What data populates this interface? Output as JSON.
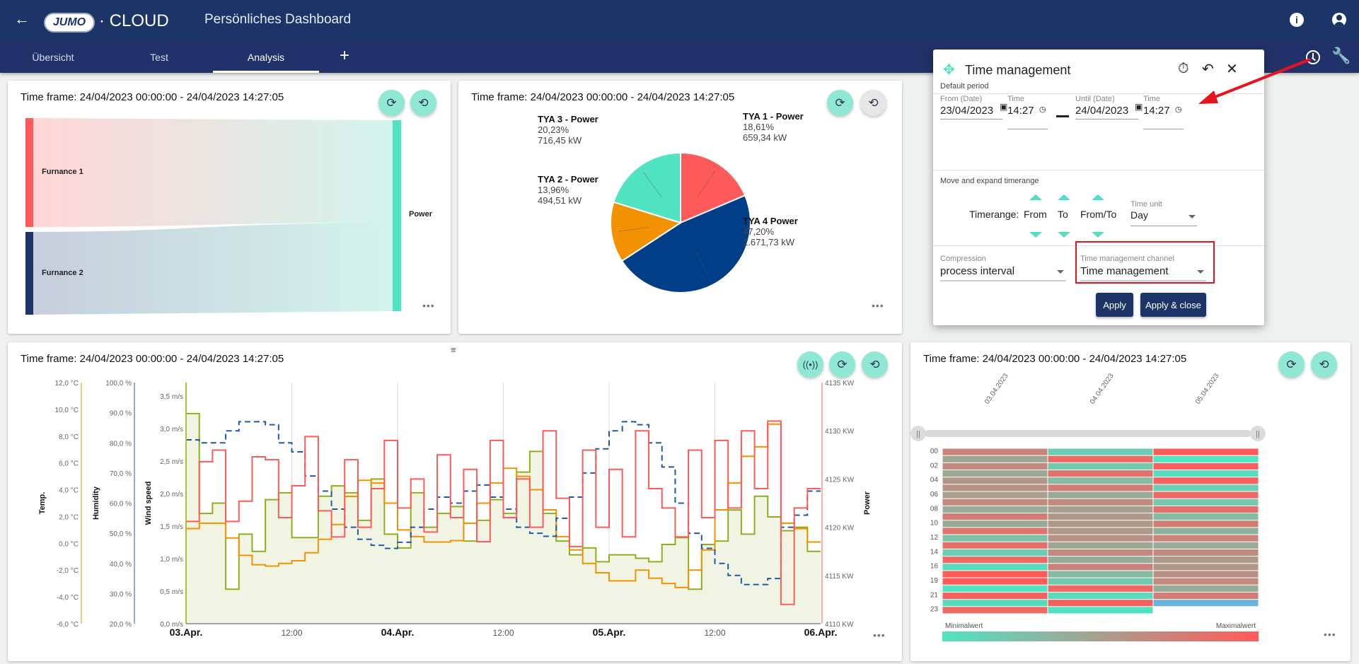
{
  "header": {
    "logo_text": "JUMO",
    "logo_suffix": "· CLOUD",
    "title": "Persönliches Dashboard"
  },
  "tabs": [
    {
      "label": "Übersicht"
    },
    {
      "label": "Test"
    },
    {
      "label": "Analysis",
      "active": true
    }
  ],
  "add_tab_label": "+",
  "colors": {
    "brand": "#1d3468",
    "accent": "#4fdfc2",
    "red": "#ff5a5a",
    "navy": "#003f87",
    "orange": "#f39200",
    "green": "#8fae1b"
  },
  "time_frame": "Time frame: 24/04/2023 00:00:00 - 24/04/2023 14:27:05",
  "sankey": {
    "sources": [
      "Furnance 1",
      "Furnance 2"
    ],
    "target": "Power"
  },
  "popup": {
    "title": "Time management",
    "default_period": "Default period",
    "from_date_label": "From (Date)",
    "from_date": "23/04/2023",
    "from_time_label": "Time",
    "from_time": "14:27",
    "until_date_label": "Until (Date)",
    "until_date": "24/04/2023",
    "until_time_label": "Time",
    "until_time": "14:27",
    "move_expand": "Move and expand timerange",
    "timerange_label": "Timerange:",
    "from": "From",
    "to": "To",
    "from_to": "From/To",
    "time_unit_label": "Time unit",
    "time_unit": "Day",
    "compression_label": "Compression",
    "compression": "process interval",
    "channel_label": "Time management channel",
    "channel": "Time management",
    "apply": "Apply",
    "apply_close": "Apply & close"
  },
  "chart_data": [
    {
      "type": "pie",
      "slices": [
        {
          "name": "TYA 1 - Power",
          "percent": 18.61,
          "percent_label": "18,61%",
          "value_label": "659,34 kW",
          "color": "#ff5a5a"
        },
        {
          "name": "TYA 4 Power",
          "percent": 47.2,
          "percent_label": "47,20%",
          "value_label": "1.671,73 kW",
          "color": "#003f87"
        },
        {
          "name": "TYA 2 - Power",
          "percent": 13.96,
          "percent_label": "13,96%",
          "value_label": "494,51 kW",
          "color": "#f39200"
        },
        {
          "name": "TYA 3 - Power",
          "percent": 20.23,
          "percent_label": "20,23%",
          "value_label": "716,45 kW",
          "color": "#50e3c2"
        }
      ]
    },
    {
      "type": "line",
      "step": true,
      "x_start": "03.Apr. 00:00",
      "x_end": "06.Apr. 00:00",
      "step_hours": 1.5,
      "x_ticks": [
        "03.Apr.",
        "12:00",
        "04.Apr.",
        "12:00",
        "05.Apr.",
        "12:00",
        "06.Apr."
      ],
      "axes": [
        {
          "id": "temp",
          "label": "Temp.",
          "range": [
            -6,
            12
          ],
          "ticks": [
            "12,0 °C",
            "10,0 °C",
            "8,0 °C",
            "6,0 °C",
            "4,0 °C",
            "2,0 °C",
            "0,0 °C",
            "-2,0 °C",
            "-4,0 °C",
            "-6,0 °C"
          ],
          "color": "#f39200"
        },
        {
          "id": "hum",
          "label": "Humidity",
          "range": [
            20,
            100
          ],
          "ticks": [
            "100,0 %",
            "90,0 %",
            "80,0 %",
            "70,0 %",
            "60,0 %",
            "50,0 %",
            "40,0 %",
            "30,0 %",
            "20,0 %"
          ],
          "color": "#1f5aa6"
        },
        {
          "id": "wind",
          "label": "Wind speed",
          "range": [
            0,
            3.5
          ],
          "ticks": [
            "3,5 m/s",
            "3,0 m/s",
            "2,5 m/s",
            "2,0 m/s",
            "1,5 m/s",
            "1,0 m/s",
            "0,5 m/s",
            "0,0 m/s"
          ],
          "color": "#8fae1b"
        },
        {
          "id": "power",
          "label": "Power",
          "range": [
            4110,
            4135
          ],
          "ticks": [
            "4135 KW",
            "4130 KW",
            "4125 KW",
            "4120 KW",
            "4115 KW",
            "4110 KW"
          ],
          "color": "#ff5a5a"
        }
      ],
      "series": [
        {
          "axis": "wind",
          "color": "#8fae1b",
          "fill": true,
          "values": [
            3.05,
            1.6,
            1.75,
            0.5,
            1.3,
            1.05,
            1.8,
            1.9,
            1.25,
            1.25,
            1.85,
            2.0,
            1.9,
            1.5,
            2.1,
            1.3,
            1.1,
            1.9,
            1.4,
            1.6,
            1.7,
            1.2,
            1.5,
            1.8,
            1.6,
            2.2,
            2.5,
            1.6,
            1.2,
            1.0,
            1.1,
            0.9,
            1.0,
            1.0,
            0.95,
            0.9,
            1.15,
            1.25,
            0.5,
            1.15,
            1.2,
            1.65,
            1.3,
            1.85,
            1.55,
            1.35,
            1.4,
            1.05
          ]
        },
        {
          "axis": "temp",
          "color": "#f39200",
          "values": [
            1.1,
            1.5,
            1.5,
            0.4,
            -0.9,
            -1.6,
            -1.7,
            -1.5,
            -1.3,
            -0.7,
            0.3,
            1.4,
            3.5,
            4.7,
            4.5,
            3.0,
            1.0,
            0.5,
            0.1,
            0.1,
            0.2,
            1.5,
            3.0,
            4.5,
            5.6,
            5.0,
            4.0,
            2.5,
            0.5,
            -0.5,
            -1.5,
            -2.2,
            -2.8,
            -2.8,
            -2.0,
            -2.6,
            -3.0,
            -3.3,
            -2.0,
            -0.5,
            2.5,
            4.5,
            6.5,
            7.2,
            8.9,
            1.5,
            1.1,
            0.1
          ]
        },
        {
          "axis": "hum",
          "color": "#1f5aa6",
          "dashed": true,
          "values": [
            81,
            80,
            80,
            84,
            87,
            87,
            86,
            80,
            77,
            69,
            64,
            58,
            52,
            48,
            46,
            45,
            47,
            52,
            58,
            62,
            60,
            64,
            66,
            62,
            58,
            52,
            50,
            49,
            55,
            62,
            70,
            78,
            84,
            87,
            86,
            80,
            72,
            60,
            50,
            45,
            40,
            36,
            33,
            33,
            35,
            52,
            56,
            64
          ]
        },
        {
          "axis": "power",
          "color": "#ff5a5a",
          "values": [
            4120.6,
            4126.8,
            4128,
            4120.6,
            4122.7,
            4127.3,
            4127,
            4121,
            4124.3,
            4129.4,
            4121.7,
            4119,
            4127,
            4120,
            4124,
            4129,
            4122,
            4125,
            4119.5,
            4127.5,
            4121,
            4126,
            4118.5,
            4129,
            4121,
            4125,
            4120,
            4130,
            4123,
            4118,
            4128,
            4120,
            4126,
            4119,
            4130,
            4124,
            4122,
            4119,
            4128,
            4121,
            4129,
            4122,
            4130,
            4124,
            4131,
            4112,
            4122,
            4124
          ]
        }
      ]
    },
    {
      "type": "heatmap",
      "columns": [
        "03.04.2023",
        "04.04.2023",
        "05.04.2023"
      ],
      "row_labels": [
        "00",
        "02",
        "04",
        "06",
        "08",
        "10",
        "12",
        "14",
        "16",
        "19",
        "21",
        "23"
      ],
      "min_label": "Minimalwert",
      "max_label": "Maximalwert",
      "color_min": "#50e3c2",
      "color_max": "#ff5a5a",
      "no_data_color": "#6ab4dc",
      "values": [
        [
          0.7,
          0.45,
          0.65,
          0.45,
          0.55,
          0.6,
          0.5,
          0.65,
          0.4,
          0.75,
          0.4,
          0.8,
          0.25,
          0.85,
          0.15,
          0.9,
          0.05,
          1,
          1,
          0,
          0.95,
          0.05,
          0.9
        ],
        [
          0.15,
          0.9,
          0.2,
          0.85,
          0.3,
          0.75,
          0.4,
          0.65,
          0.5,
          0.55,
          0.55,
          0.55,
          0.6,
          0.45,
          0.65,
          0.4,
          0.7,
          0.3,
          0.2,
          0.9,
          0.05,
          0.95,
          0
        ],
        [
          1,
          0,
          0.95,
          0.05,
          0.95,
          0.15,
          0.9,
          0.2,
          0.85,
          0.3,
          0.75,
          0.35,
          0.7,
          0.4,
          0.65,
          0.55,
          0.55,
          0.6,
          0.65,
          0.4,
          0.75,
          null
        ]
      ]
    }
  ]
}
